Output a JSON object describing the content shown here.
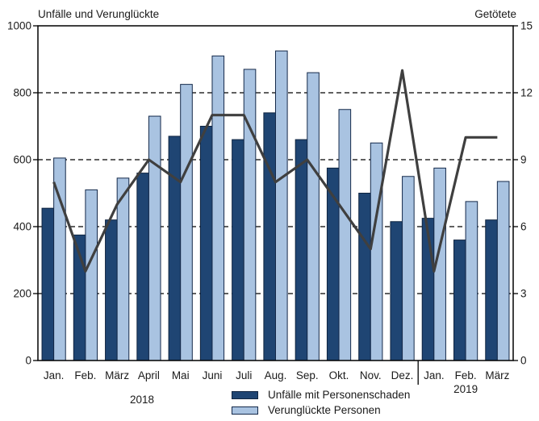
{
  "chart_data": {
    "type": "bar",
    "subtype": "grouped-bars-with-line-overlay",
    "title": "",
    "categories": [
      "Jan.",
      "Feb.",
      "März",
      "April",
      "Mai",
      "Juni",
      "Juli",
      "Aug.",
      "Sep.",
      "Okt.",
      "Nov.",
      "Dez.",
      "Jan.",
      "Feb.",
      "März"
    ],
    "year_groups": [
      {
        "label": "2018",
        "from": 0,
        "to": 11
      },
      {
        "label": "2019",
        "from": 12,
        "to": 14
      }
    ],
    "series": [
      {
        "name": "Unfälle mit Personenschaden",
        "type": "bar",
        "axis": "left",
        "color": "#1f4573",
        "border_color": "#0f2440",
        "values": [
          455,
          375,
          420,
          560,
          670,
          700,
          660,
          740,
          660,
          575,
          500,
          415,
          425,
          360,
          420
        ]
      },
      {
        "name": "Verunglückte Personen",
        "type": "bar",
        "axis": "left",
        "color": "#a9c3e1",
        "border_color": "#14294a",
        "values": [
          605,
          510,
          545,
          730,
          825,
          910,
          870,
          925,
          860,
          750,
          650,
          550,
          575,
          475,
          535
        ]
      },
      {
        "name": "Getötete",
        "type": "line",
        "axis": "right",
        "color": "#3f3f3f",
        "values": [
          8,
          4,
          7,
          9,
          8,
          11,
          11,
          8,
          9,
          7,
          5,
          13,
          4,
          10,
          10
        ]
      }
    ],
    "left_axis": {
      "title": "Unfälle und Verunglückte",
      "min": 0,
      "max": 1000,
      "ticks": [
        0,
        200,
        400,
        600,
        800,
        1000
      ]
    },
    "right_axis": {
      "title": "Getötete",
      "min": 0,
      "max": 15,
      "ticks": [
        0,
        3,
        6,
        9,
        12,
        15
      ]
    },
    "grid": {
      "style": "dashed",
      "color": "#000000",
      "at_left_values": [
        200,
        400,
        600,
        800
      ]
    },
    "legend": {
      "position": "bottom-center",
      "items": [
        {
          "label": "Unfälle mit Personenschaden",
          "color": "#1f4573"
        },
        {
          "label": "Verunglückte Personen",
          "color": "#a9c3e1"
        }
      ]
    }
  }
}
